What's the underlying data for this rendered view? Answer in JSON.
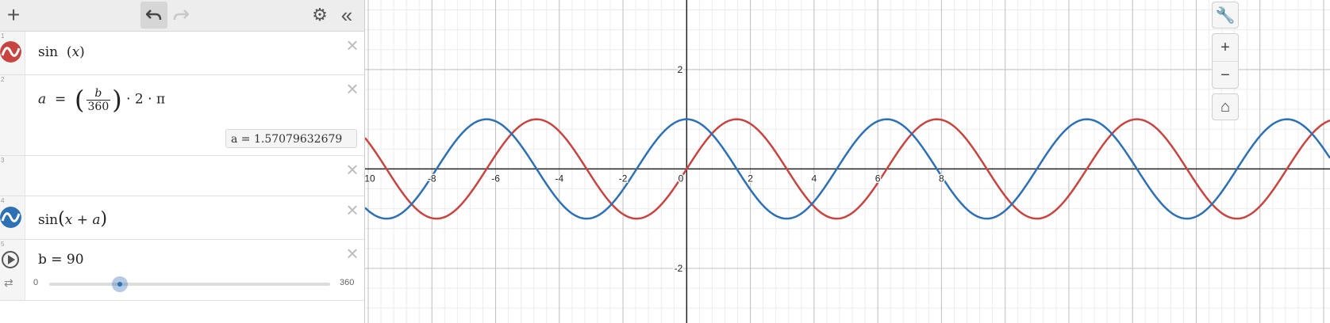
{
  "toolbar": {
    "add_icon": "plus-icon",
    "undo_icon": "undo-icon",
    "redo_icon": "redo-icon",
    "settings_icon": "gear-icon",
    "collapse_icon": "double-chevron-left-icon"
  },
  "expressions": [
    {
      "index": "1",
      "func": "sin",
      "arg": "x",
      "color": "#c74440"
    },
    {
      "index": "2",
      "lhs": "a",
      "eq": "=",
      "frac_num": "b",
      "frac_den": "360",
      "tail": "· 2 · π",
      "result_label": "a  =  1.57079632679"
    },
    {
      "index": "3"
    },
    {
      "index": "4",
      "func": "sin",
      "arg": "x + a",
      "color": "#2d70b3"
    },
    {
      "index": "5",
      "slider_label": "b = 90",
      "slider_min": "0",
      "slider_max": "360",
      "slider_value": 90
    }
  ],
  "graph": {
    "x_ticks": [
      "-10",
      "-8",
      "-6",
      "-4",
      "-2",
      "0",
      "2",
      "4",
      "6",
      "8"
    ],
    "y_ticks": [
      "2",
      "-2"
    ],
    "series_colors": {
      "sin": "#c74440",
      "shifted": "#2d70b3"
    }
  },
  "chart_data": {
    "type": "line",
    "xlim": [
      -10.1,
      20.2
    ],
    "ylim": [
      -3.1,
      3.4
    ],
    "grid": true,
    "series": [
      {
        "expression": "sin(x)",
        "color": "#c74440"
      },
      {
        "expression": "sin(x + a)",
        "a": 1.57079632679,
        "color": "#2d70b3"
      }
    ]
  }
}
